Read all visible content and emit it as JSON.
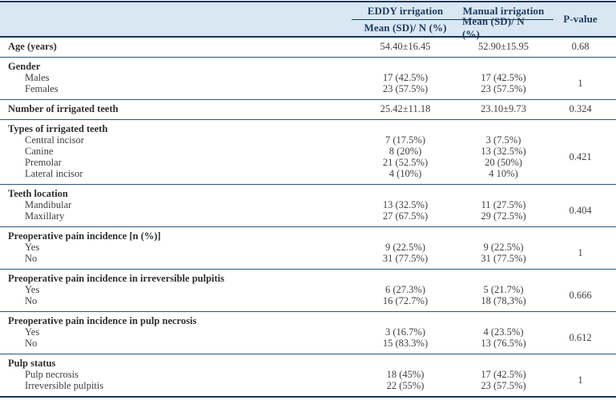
{
  "table": {
    "header": {
      "col_eddy": "EDDY irrigation",
      "col_manual": "Manual irrigation",
      "col_p": "P-value",
      "subheader": "Mean (SD)/ N (%)"
    },
    "colors": {
      "header_background": "#d9e7f3",
      "border_navy": "#17365d",
      "divider_blue": "#2e5574",
      "header_text": "#1e3a5c",
      "body_text": "#3f3f3f"
    },
    "sections": [
      {
        "label": "Age (years)",
        "eddy": "54.40±16.45",
        "manual": "52.90±15.95",
        "p": "0.68",
        "rows": []
      },
      {
        "label": "Gender",
        "p": "1",
        "rows": [
          {
            "label": "Males",
            "eddy": "17 (42.5%)",
            "manual": "17 (42.5%)"
          },
          {
            "label": "Females",
            "eddy": "23 (57.5%)",
            "manual": "23 (57.5%)"
          }
        ]
      },
      {
        "label": "Number of irrigated teeth",
        "eddy": "25.42±11.18",
        "manual": "23.10±9.73",
        "p": "0.324",
        "rows": []
      },
      {
        "label": "Types of irrigated teeth",
        "p": "0.421",
        "rows": [
          {
            "label": "Central incisor",
            "eddy": "7 (17.5%)",
            "manual": "3 (7.5%)"
          },
          {
            "label": "Canine",
            "eddy": "8 (20%)",
            "manual": "13 (32.5%)"
          },
          {
            "label": "Premolar",
            "eddy": "21 (52.5%)",
            "manual": "20 (50%)"
          },
          {
            "label": "Lateral incisor",
            "eddy": "4 (10%)",
            "manual": "4 10%)"
          }
        ]
      },
      {
        "label": "Teeth location",
        "p": "0.404",
        "rows": [
          {
            "label": "Mandibular",
            "eddy": "13 (32.5%)",
            "manual": "11 (27.5%)"
          },
          {
            "label": "Maxillary",
            "eddy": "27 (67.5%)",
            "manual": "29 (72.5%)"
          }
        ]
      },
      {
        "label": "Preoperative pain incidence [n (%)]",
        "p": "1",
        "rows": [
          {
            "label": "Yes",
            "eddy": "9 (22.5%)",
            "manual": "9 (22.5%)"
          },
          {
            "label": "No",
            "eddy": "31 (77.5%)",
            "manual": "31 (77.5%)"
          }
        ]
      },
      {
        "label": "Preoperative pain incidence in irreversible pulpitis",
        "p": "0.666",
        "rows": [
          {
            "label": "Yes",
            "eddy": "6 (27.3%)",
            "manual": "5 (21.7%)"
          },
          {
            "label": "No",
            "eddy": "16 (72.7%)",
            "manual": "18 (78,3%)"
          }
        ]
      },
      {
        "label": "Preoperative pain incidence in pulp necrosis",
        "p": "0.612",
        "rows": [
          {
            "label": "Yes",
            "eddy": "3 (16.7%)",
            "manual": "4 (23.5%)"
          },
          {
            "label": "No",
            "eddy": "15 (83.3%)",
            "manual": "13 (76.5%)"
          }
        ]
      },
      {
        "label": "Pulp status",
        "p": "1",
        "rows": [
          {
            "label": "Pulp necrosis",
            "eddy": "18 (45%)",
            "manual": "17 (42.5%)"
          },
          {
            "label": "Irreversible pulpitis",
            "eddy": "22 (55%)",
            "manual": "23 (57.5%)"
          }
        ]
      }
    ]
  }
}
